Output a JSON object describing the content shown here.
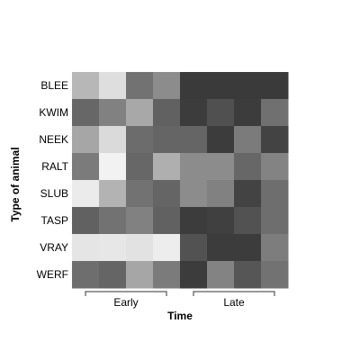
{
  "chart_data": {
    "type": "heatmap",
    "title": "",
    "xlabel": "Time",
    "ylabel": "Type of animal",
    "rows": [
      "BLEE",
      "KWIM",
      "NEEK",
      "RALT",
      "SLUB",
      "TASP",
      "VRAY",
      "WERF"
    ],
    "column_count": 8,
    "x_groups": [
      {
        "label": "Early",
        "columns": [
          0,
          1,
          2,
          3
        ]
      },
      {
        "label": "Late",
        "columns": [
          4,
          5,
          6,
          7
        ]
      }
    ],
    "values": [
      [
        0.7,
        0.88,
        0.38,
        0.5,
        0.12,
        0.12,
        0.12,
        0.12
      ],
      [
        0.33,
        0.45,
        0.63,
        0.3,
        0.13,
        0.22,
        0.13,
        0.37
      ],
      [
        0.62,
        0.86,
        0.35,
        0.32,
        0.32,
        0.13,
        0.42,
        0.16
      ],
      [
        0.42,
        0.97,
        0.33,
        0.66,
        0.5,
        0.5,
        0.33,
        0.46
      ],
      [
        0.94,
        0.68,
        0.38,
        0.32,
        0.5,
        0.45,
        0.16,
        0.36
      ],
      [
        0.3,
        0.38,
        0.45,
        0.3,
        0.13,
        0.15,
        0.23,
        0.36
      ],
      [
        0.91,
        0.92,
        0.9,
        0.95,
        0.23,
        0.13,
        0.13,
        0.43
      ],
      [
        0.36,
        0.32,
        0.62,
        0.42,
        0.13,
        0.46,
        0.25,
        0.38
      ]
    ],
    "color_scale": {
      "low": "#202020",
      "high": "#f8f8f8"
    },
    "grid": false,
    "legend": "none"
  }
}
